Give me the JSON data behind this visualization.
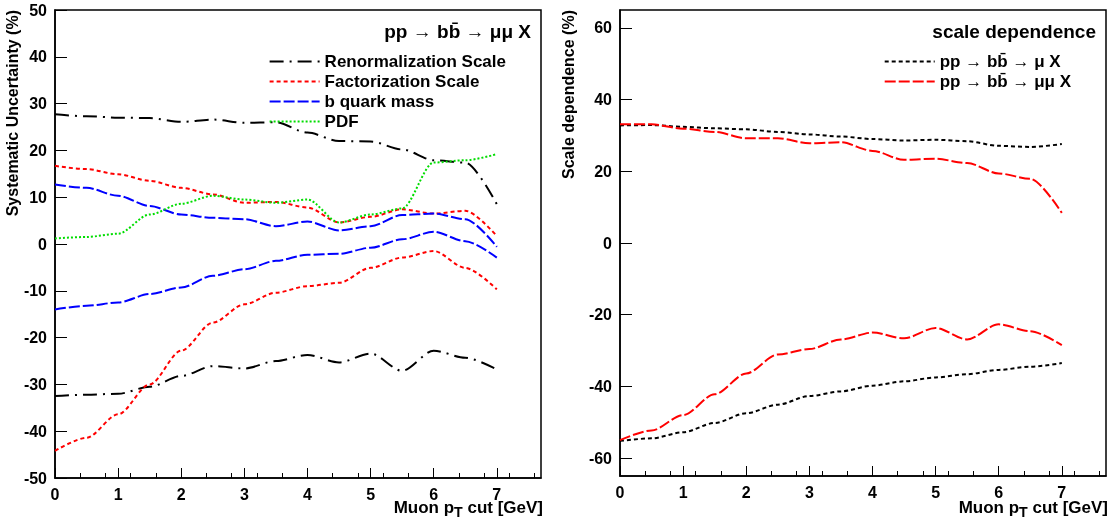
{
  "chart_data": [
    {
      "type": "line",
      "legend_title": "pp → bb̄ → μμ X",
      "xlabel": "Muon p$_{T}$ cut [GeV]",
      "ylabel": "Systematic Uncertainty (%)",
      "x": [
        0,
        0.5,
        1,
        1.5,
        2,
        2.5,
        3,
        3.5,
        4,
        4.5,
        5,
        5.5,
        6,
        6.5,
        7
      ],
      "xlim": [
        0,
        7.7
      ],
      "xticks": [
        0,
        1,
        2,
        3,
        4,
        5,
        6,
        7
      ],
      "ylim": [
        -50,
        50
      ],
      "yticks": [
        -50,
        -40,
        -30,
        -20,
        -10,
        0,
        10,
        20,
        30,
        40,
        50
      ],
      "grid": false,
      "legend": "top right",
      "marker": "none",
      "series": [
        {
          "name": "Renormalization Scale",
          "color": "#000000",
          "line_style": "dashdot",
          "values": [
            27.7,
            27.3,
            27,
            26.9,
            26.1,
            26.6,
            25.9,
            26,
            23.8,
            22,
            21.9,
            20.2,
            17.9,
            17.4,
            8.5
          ]
        },
        {
          "name": "Factorization Scale",
          "color": "#ff0000",
          "line_style": "dashed",
          "values": [
            16.7,
            16,
            14.9,
            13.5,
            12,
            10.6,
            8.8,
            9,
            7.8,
            4.6,
            5.8,
            7.4,
            6.5,
            7.1,
            1.7
          ]
        },
        {
          "name": "b quark mass",
          "color": "#0000ff",
          "line_style": "longdash",
          "values": [
            12.7,
            12,
            10.3,
            8.1,
            6.3,
            5.6,
            5.3,
            3.8,
            4.8,
            2.9,
            3.8,
            6.2,
            6.5,
            5.3,
            -0.6
          ]
        },
        {
          "name": "PDF",
          "color": "#00dd00",
          "line_style": "dotted",
          "values": [
            1.2,
            1.5,
            2.2,
            6.3,
            8.6,
            10.3,
            9.5,
            8.8,
            9.5,
            4.6,
            6.3,
            7.6,
            17.4,
            17.9,
            19.2
          ]
        },
        {
          "color": "#000000",
          "line_style": "dashdot",
          "values": [
            -32.5,
            -32.2,
            -32,
            -30.5,
            -28.2,
            -26.1,
            -26.6,
            -25,
            -23.7,
            -25.3,
            -23.4,
            -27.1,
            -22.8,
            -24.3,
            -26.8
          ]
        },
        {
          "color": "#ff0000",
          "line_style": "dashed",
          "values": [
            -44.2,
            -41.4,
            -36.4,
            -30,
            -22.8,
            -16.8,
            -12.9,
            -10.4,
            -9,
            -8.3,
            -5.1,
            -2.9,
            -1.5,
            -5.1,
            -9.7
          ]
        },
        {
          "color": "#0000ff",
          "line_style": "longdash",
          "values": [
            -14,
            -13.2,
            -12.5,
            -10.7,
            -9.3,
            -6.8,
            -5.4,
            -3.6,
            -2.3,
            -2.1,
            -0.8,
            1,
            2.6,
            0.6,
            -2.9
          ]
        }
      ]
    },
    {
      "type": "line",
      "legend_title": "scale dependence",
      "xlabel": "Muon p$_{T}$ cut [GeV]",
      "ylabel": "Scale dependence (%)",
      "x": [
        0,
        0.5,
        1,
        1.5,
        2,
        2.5,
        3,
        3.5,
        4,
        4.5,
        5,
        5.5,
        6,
        6.5,
        7
      ],
      "xlim": [
        0,
        7.7
      ],
      "xticks": [
        0,
        1,
        2,
        3,
        4,
        5,
        6,
        7
      ],
      "ylim": [
        -65,
        65
      ],
      "yticks": [
        -60,
        -40,
        -20,
        0,
        20,
        40,
        60
      ],
      "grid": false,
      "legend": "top right",
      "marker": "none",
      "series": [
        {
          "name": "pp → bb̄ → μ X",
          "color": "#000000",
          "line_style": "dashed",
          "values": [
            32.8,
            32.9,
            32.4,
            32,
            31.7,
            31,
            30.3,
            29.7,
            29,
            28.6,
            28.8,
            28.4,
            27.1,
            26.8,
            27.6
          ]
        },
        {
          "name": "pp → bb̄ → μμ X",
          "color": "#ff0000",
          "line_style": "longdash",
          "values": [
            33.1,
            33.1,
            31.9,
            31,
            29.2,
            29.2,
            27.8,
            28.1,
            25.7,
            23.2,
            23.5,
            22.3,
            19.4,
            17.9,
            8.4
          ]
        },
        {
          "color": "#000000",
          "line_style": "dashed",
          "values": [
            -55.2,
            -54.5,
            -52.8,
            -50.2,
            -47.5,
            -45.1,
            -42.7,
            -41.4,
            -39.8,
            -38.6,
            -37.5,
            -36.6,
            -35.4,
            -34.5,
            -33.5
          ]
        },
        {
          "color": "#ff0000",
          "line_style": "longdash",
          "values": [
            -55,
            -52.3,
            -48,
            -42.2,
            -36.4,
            -31.1,
            -29.6,
            -26.9,
            -25,
            -26.6,
            -23.7,
            -26.9,
            -22.7,
            -24.6,
            -28.5
          ]
        }
      ]
    }
  ]
}
